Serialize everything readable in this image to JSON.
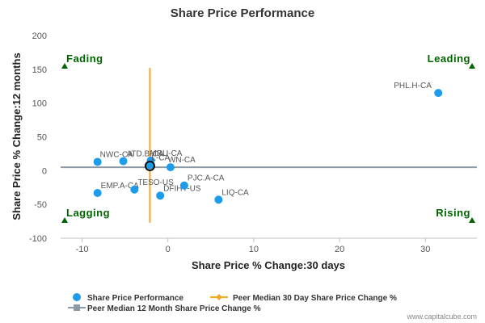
{
  "chart_data": {
    "type": "scatter",
    "title": "Share Price Performance",
    "xlabel": "Share Price % Change:30 days",
    "ylabel": "Share Price % Change:12 months",
    "xlim": [
      -12.5,
      36
    ],
    "ylim": [
      -100,
      200
    ],
    "xticks": [
      -10,
      0,
      10,
      20,
      30
    ],
    "yticks": [
      -100,
      -50,
      0,
      50,
      100,
      150,
      200
    ],
    "grid": false,
    "quadrant_labels": {
      "top_left": "Fading",
      "top_right": "Leading",
      "bottom_left": "Lagging",
      "bottom_right": "Rising"
    },
    "series": [
      {
        "name": "Share Price Performance",
        "color": "#1e9be9",
        "points": [
          {
            "label": "PHL.H-CA",
            "x": 31.5,
            "y": 115
          },
          {
            "label": "NWC-CA",
            "x": -8.2,
            "y": 13
          },
          {
            "label": "ATD.B-CA",
            "x": -5.2,
            "y": 14
          },
          {
            "label": "MRU-CA",
            "x": -2.0,
            "y": 15
          },
          {
            "label": "L-CA",
            "x": -2.1,
            "y": 8
          },
          {
            "label": "WN-CA",
            "x": 0.3,
            "y": 5
          },
          {
            "label": "EMP.A-CA",
            "x": -8.2,
            "y": -33
          },
          {
            "label": "TESO-US",
            "x": -3.9,
            "y": -28
          },
          {
            "label": "DFIHY-US",
            "x": -0.9,
            "y": -37
          },
          {
            "label": "PJC.A-CA",
            "x": 1.9,
            "y": -22
          },
          {
            "label": "LIQ-CA",
            "x": 5.9,
            "y": -43
          }
        ],
        "highlight": {
          "x": -2.1,
          "y": 7
        }
      }
    ],
    "peer_median_30d": {
      "name": "Peer Median 30 Day Share Price Change %",
      "x": -2.1,
      "color": "#f5a623"
    },
    "peer_median_12m": {
      "name": "Peer Median 12 Month Share Price Change %",
      "y": 5,
      "color": "#8c9aa6"
    },
    "legend": {
      "placement": "bottom-left",
      "items": [
        "Share Price Performance",
        "Peer Median 30 Day Share Price Change %",
        "Peer Median 12 Month Share Price Change %"
      ]
    },
    "credit": "www.capitalcube.com"
  }
}
